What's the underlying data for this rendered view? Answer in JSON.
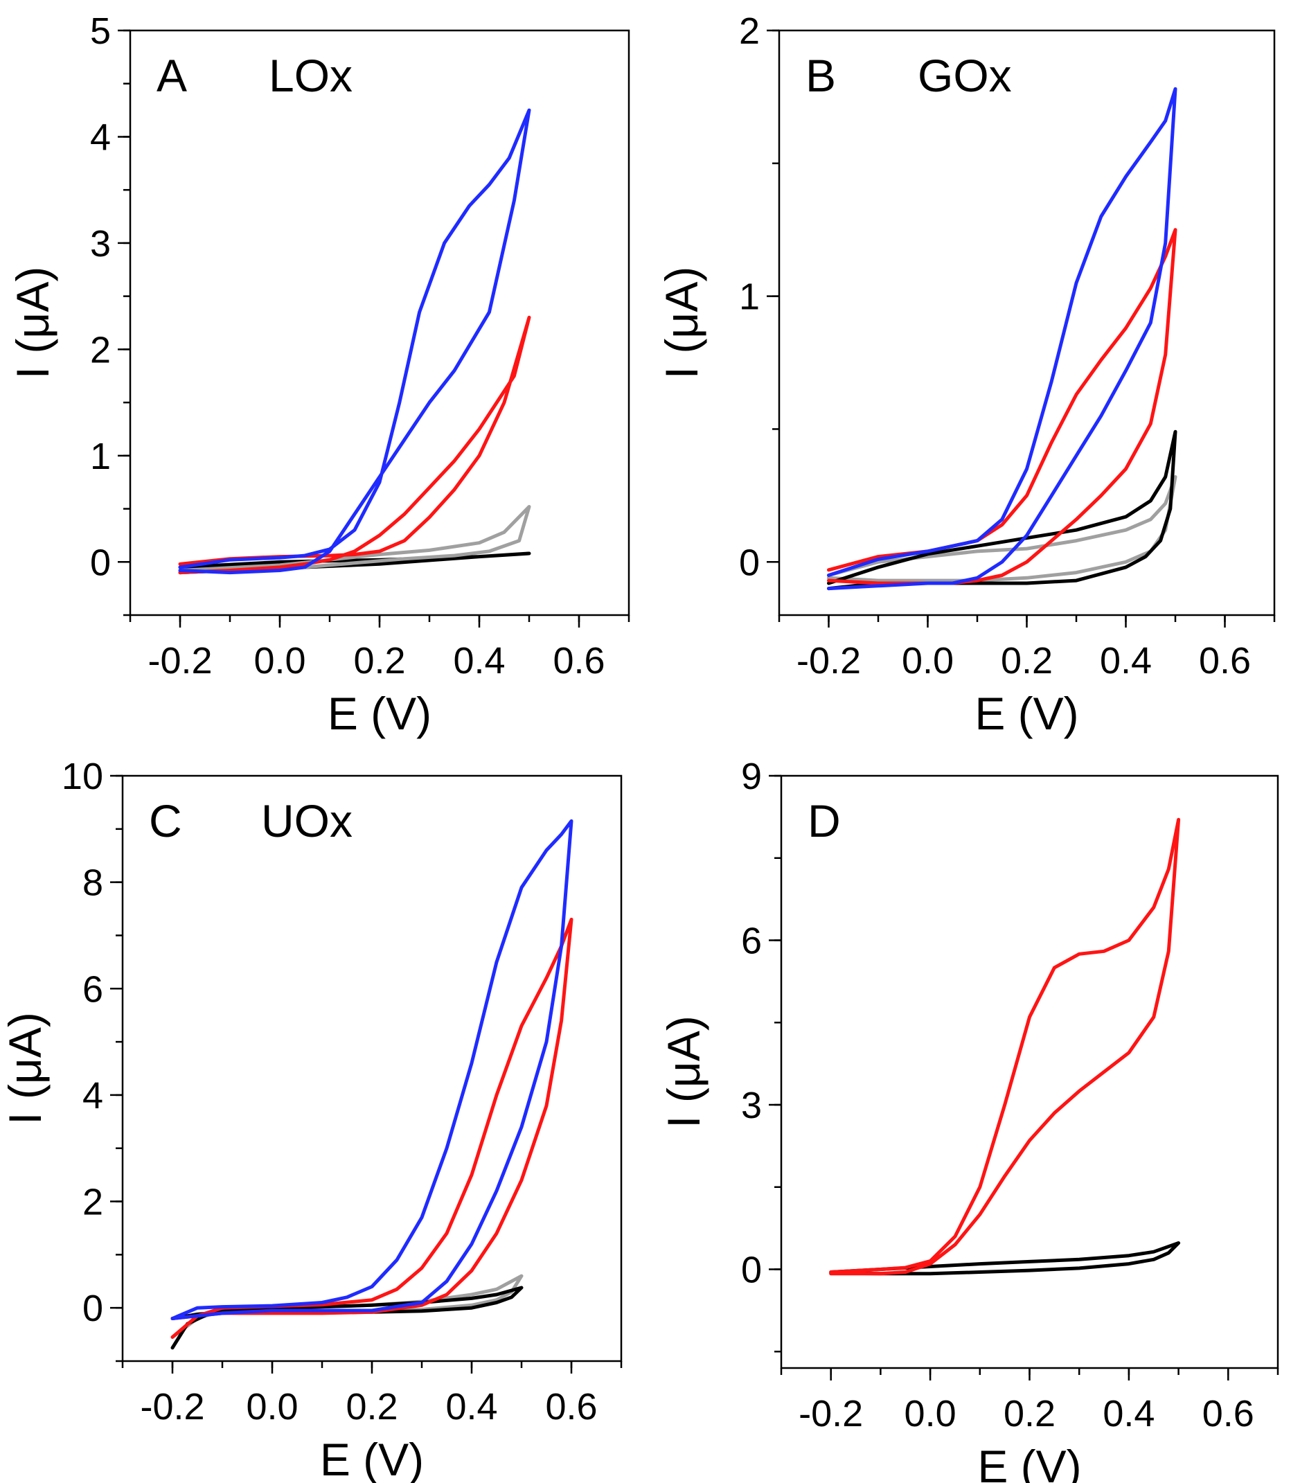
{
  "figure_colors": {
    "blue": "#1f2bff",
    "red": "#ff1414",
    "gray": "#a0a0a0",
    "black": "#000000"
  },
  "chart_data": [
    {
      "id": "A",
      "type": "line",
      "panel_letter": "A",
      "title": "LOx",
      "xlabel": "E (V)",
      "ylabel": "I (μA)",
      "xlim": [
        -0.3,
        0.7
      ],
      "ylim": [
        -0.5,
        5
      ],
      "xticks": [
        "-0.2",
        "0.0",
        "0.2",
        "0.4",
        "0.6"
      ],
      "yticks": [
        "0",
        "1",
        "2",
        "3",
        "4",
        "5"
      ],
      "series": [
        {
          "name": "black",
          "color": "#000000",
          "x": [
            -0.2,
            0.0,
            0.2,
            0.4,
            0.5,
            0.4,
            0.2,
            0.0,
            -0.2
          ],
          "y": [
            -0.05,
            0.0,
            0.02,
            0.05,
            0.08,
            0.05,
            -0.02,
            -0.06,
            -0.1
          ]
        },
        {
          "name": "gray",
          "color": "#a0a0a0",
          "x": [
            -0.2,
            0.0,
            0.1,
            0.2,
            0.3,
            0.4,
            0.45,
            0.5,
            0.48,
            0.42,
            0.35,
            0.25,
            0.15,
            0.05,
            -0.05,
            -0.2
          ],
          "y": [
            -0.08,
            -0.03,
            0.02,
            0.07,
            0.11,
            0.18,
            0.28,
            0.52,
            0.2,
            0.1,
            0.06,
            0.03,
            -0.01,
            -0.05,
            -0.07,
            -0.1
          ]
        },
        {
          "name": "red",
          "color": "#ff1414",
          "x": [
            -0.2,
            -0.1,
            0.0,
            0.1,
            0.15,
            0.2,
            0.25,
            0.3,
            0.35,
            0.4,
            0.45,
            0.5,
            0.47,
            0.4,
            0.35,
            0.3,
            0.25,
            0.2,
            0.15,
            0.1,
            0.05,
            0.0,
            -0.1,
            -0.2
          ],
          "y": [
            -0.02,
            0.03,
            0.05,
            0.06,
            0.07,
            0.1,
            0.2,
            0.42,
            0.68,
            1.0,
            1.5,
            2.3,
            1.75,
            1.25,
            0.95,
            0.7,
            0.45,
            0.25,
            0.1,
            0.02,
            -0.02,
            -0.05,
            -0.08,
            -0.1
          ]
        },
        {
          "name": "blue",
          "color": "#1f2bff",
          "x": [
            -0.2,
            -0.1,
            0.0,
            0.05,
            0.1,
            0.15,
            0.2,
            0.24,
            0.28,
            0.33,
            0.38,
            0.42,
            0.46,
            0.5,
            0.47,
            0.42,
            0.35,
            0.3,
            0.25,
            0.2,
            0.15,
            0.1,
            0.05,
            0.0,
            -0.1,
            -0.2
          ],
          "y": [
            -0.05,
            0.02,
            0.04,
            0.06,
            0.12,
            0.3,
            0.75,
            1.5,
            2.35,
            3.0,
            3.35,
            3.55,
            3.8,
            4.25,
            3.4,
            2.35,
            1.8,
            1.5,
            1.15,
            0.8,
            0.45,
            0.1,
            -0.05,
            -0.08,
            -0.1,
            -0.08
          ]
        }
      ]
    },
    {
      "id": "B",
      "type": "line",
      "panel_letter": "B",
      "title": "GOx",
      "xlabel": "E (V)",
      "ylabel": "I (μA)",
      "xlim": [
        -0.3,
        0.7
      ],
      "ylim": [
        -0.2,
        2
      ],
      "xticks": [
        "-0.2",
        "0.0",
        "0.2",
        "0.4",
        "0.6"
      ],
      "yticks": [
        "0",
        "1",
        "2"
      ],
      "series": [
        {
          "name": "gray",
          "color": "#a0a0a0",
          "x": [
            -0.2,
            -0.1,
            0.0,
            0.1,
            0.2,
            0.3,
            0.4,
            0.45,
            0.48,
            0.5,
            0.48,
            0.45,
            0.4,
            0.3,
            0.2,
            0.1,
            0.0,
            -0.1,
            -0.2
          ],
          "y": [
            -0.05,
            0.0,
            0.02,
            0.04,
            0.05,
            0.08,
            0.12,
            0.16,
            0.22,
            0.32,
            0.12,
            0.04,
            0.0,
            -0.04,
            -0.06,
            -0.07,
            -0.07,
            -0.07,
            -0.06
          ]
        },
        {
          "name": "black",
          "color": "#000000",
          "x": [
            -0.2,
            -0.1,
            0.0,
            0.1,
            0.2,
            0.3,
            0.4,
            0.45,
            0.48,
            0.5,
            0.49,
            0.47,
            0.44,
            0.4,
            0.3,
            0.2,
            0.1,
            0.0,
            -0.1,
            -0.2
          ],
          "y": [
            -0.08,
            -0.02,
            0.03,
            0.06,
            0.09,
            0.12,
            0.17,
            0.23,
            0.32,
            0.49,
            0.2,
            0.08,
            0.02,
            -0.02,
            -0.07,
            -0.08,
            -0.08,
            -0.08,
            -0.08,
            -0.1
          ]
        },
        {
          "name": "red",
          "color": "#ff1414",
          "x": [
            -0.2,
            -0.1,
            0.0,
            0.1,
            0.15,
            0.2,
            0.25,
            0.3,
            0.35,
            0.4,
            0.45,
            0.48,
            0.5,
            0.48,
            0.45,
            0.4,
            0.35,
            0.3,
            0.25,
            0.2,
            0.15,
            0.1,
            0.05,
            0.0,
            -0.1,
            -0.2
          ],
          "y": [
            -0.03,
            0.02,
            0.04,
            0.08,
            0.14,
            0.25,
            0.45,
            0.63,
            0.76,
            0.88,
            1.03,
            1.15,
            1.25,
            0.78,
            0.52,
            0.35,
            0.25,
            0.16,
            0.08,
            0.0,
            -0.05,
            -0.07,
            -0.08,
            -0.08,
            -0.08,
            -0.07
          ]
        },
        {
          "name": "blue",
          "color": "#1f2bff",
          "x": [
            -0.2,
            -0.1,
            0.0,
            0.1,
            0.15,
            0.2,
            0.25,
            0.3,
            0.35,
            0.4,
            0.45,
            0.48,
            0.5,
            0.48,
            0.45,
            0.4,
            0.35,
            0.3,
            0.25,
            0.2,
            0.15,
            0.1,
            0.05,
            0.0,
            -0.1,
            -0.2
          ],
          "y": [
            -0.05,
            0.01,
            0.04,
            0.08,
            0.16,
            0.35,
            0.68,
            1.05,
            1.3,
            1.45,
            1.58,
            1.66,
            1.78,
            1.2,
            0.9,
            0.72,
            0.55,
            0.4,
            0.25,
            0.1,
            0.0,
            -0.06,
            -0.08,
            -0.08,
            -0.09,
            -0.1
          ]
        }
      ]
    },
    {
      "id": "C",
      "type": "line",
      "panel_letter": "C",
      "title": "UOx",
      "xlabel": "E (V)",
      "ylabel": "I (μA)",
      "xlim": [
        -0.3,
        0.7
      ],
      "ylim": [
        -1,
        10
      ],
      "xticks": [
        "-0.2",
        "0.0",
        "0.2",
        "0.4",
        "0.6"
      ],
      "yticks": [
        "0",
        "2",
        "4",
        "6",
        "8",
        "10"
      ],
      "series": [
        {
          "name": "gray",
          "color": "#a0a0a0",
          "x": [
            -0.2,
            -0.15,
            -0.1,
            0.0,
            0.1,
            0.2,
            0.3,
            0.4,
            0.45,
            0.5,
            0.48,
            0.45,
            0.4,
            0.3,
            0.2,
            0.1,
            0.0,
            -0.1,
            -0.2
          ],
          "y": [
            -0.55,
            -0.2,
            -0.05,
            0.0,
            0.02,
            0.05,
            0.12,
            0.25,
            0.35,
            0.6,
            0.3,
            0.15,
            0.05,
            -0.03,
            -0.05,
            -0.05,
            -0.05,
            -0.07,
            -0.2
          ]
        },
        {
          "name": "black",
          "color": "#000000",
          "x": [
            -0.2,
            -0.17,
            -0.12,
            0.0,
            0.1,
            0.2,
            0.3,
            0.4,
            0.45,
            0.5,
            0.48,
            0.45,
            0.4,
            0.3,
            0.2,
            0.1,
            0.0,
            -0.1,
            -0.15,
            -0.2
          ],
          "y": [
            -0.75,
            -0.3,
            -0.08,
            0.0,
            0.02,
            0.05,
            0.1,
            0.18,
            0.25,
            0.38,
            0.2,
            0.1,
            0.0,
            -0.06,
            -0.08,
            -0.08,
            -0.08,
            -0.08,
            -0.12,
            -0.2
          ]
        },
        {
          "name": "red",
          "color": "#ff1414",
          "x": [
            -0.2,
            -0.15,
            -0.1,
            0.0,
            0.1,
            0.2,
            0.25,
            0.3,
            0.35,
            0.4,
            0.45,
            0.5,
            0.55,
            0.58,
            0.6,
            0.58,
            0.55,
            0.5,
            0.45,
            0.4,
            0.35,
            0.3,
            0.2,
            0.1,
            0.0,
            -0.1,
            -0.2
          ],
          "y": [
            -0.55,
            -0.15,
            0.0,
            0.03,
            0.06,
            0.15,
            0.35,
            0.75,
            1.4,
            2.5,
            4.0,
            5.3,
            6.2,
            6.8,
            7.3,
            5.4,
            3.8,
            2.4,
            1.4,
            0.7,
            0.25,
            0.05,
            -0.08,
            -0.1,
            -0.1,
            -0.1,
            -0.2
          ]
        },
        {
          "name": "blue",
          "color": "#1f2bff",
          "x": [
            -0.2,
            -0.15,
            -0.1,
            0.0,
            0.1,
            0.15,
            0.2,
            0.25,
            0.3,
            0.35,
            0.4,
            0.45,
            0.5,
            0.55,
            0.58,
            0.6,
            0.58,
            0.55,
            0.5,
            0.45,
            0.4,
            0.35,
            0.3,
            0.2,
            0.1,
            0.0,
            -0.1,
            -0.2
          ],
          "y": [
            -0.2,
            0.0,
            0.02,
            0.04,
            0.1,
            0.2,
            0.4,
            0.9,
            1.7,
            3.0,
            4.6,
            6.5,
            7.9,
            8.6,
            8.9,
            9.15,
            6.8,
            5.0,
            3.4,
            2.2,
            1.2,
            0.5,
            0.1,
            -0.05,
            -0.05,
            -0.05,
            -0.1,
            -0.2
          ]
        }
      ]
    },
    {
      "id": "D",
      "type": "line",
      "panel_letter": "D",
      "title": "",
      "xlabel": "E (V)",
      "ylabel": "I (μA)",
      "xlim": [
        -0.3,
        0.7
      ],
      "ylim": [
        -1.8,
        9
      ],
      "xticks": [
        "-0.2",
        "0.0",
        "0.2",
        "0.4",
        "0.6"
      ],
      "yticks": [
        "0",
        "3",
        "6",
        "9"
      ],
      "series": [
        {
          "name": "black",
          "color": "#000000",
          "x": [
            -0.2,
            -0.1,
            0.0,
            0.1,
            0.2,
            0.3,
            0.4,
            0.45,
            0.5,
            0.48,
            0.45,
            0.4,
            0.3,
            0.2,
            0.1,
            0.0,
            -0.1,
            -0.2
          ],
          "y": [
            -0.05,
            0.0,
            0.05,
            0.1,
            0.14,
            0.18,
            0.25,
            0.32,
            0.48,
            0.3,
            0.18,
            0.1,
            0.02,
            -0.02,
            -0.05,
            -0.08,
            -0.08,
            -0.07
          ]
        },
        {
          "name": "red",
          "color": "#ff1414",
          "x": [
            -0.2,
            -0.1,
            -0.05,
            0.0,
            0.05,
            0.1,
            0.15,
            0.2,
            0.25,
            0.3,
            0.35,
            0.4,
            0.45,
            0.48,
            0.5,
            0.48,
            0.45,
            0.4,
            0.35,
            0.3,
            0.25,
            0.2,
            0.15,
            0.1,
            0.05,
            0.0,
            -0.05,
            -0.1,
            -0.2
          ],
          "y": [
            -0.05,
            0.0,
            0.03,
            0.15,
            0.6,
            1.5,
            3.0,
            4.6,
            5.5,
            5.75,
            5.8,
            6.0,
            6.6,
            7.3,
            8.2,
            5.8,
            4.6,
            3.95,
            3.6,
            3.25,
            2.85,
            2.35,
            1.7,
            1.0,
            0.45,
            0.1,
            -0.05,
            -0.08,
            -0.08
          ]
        }
      ]
    }
  ]
}
